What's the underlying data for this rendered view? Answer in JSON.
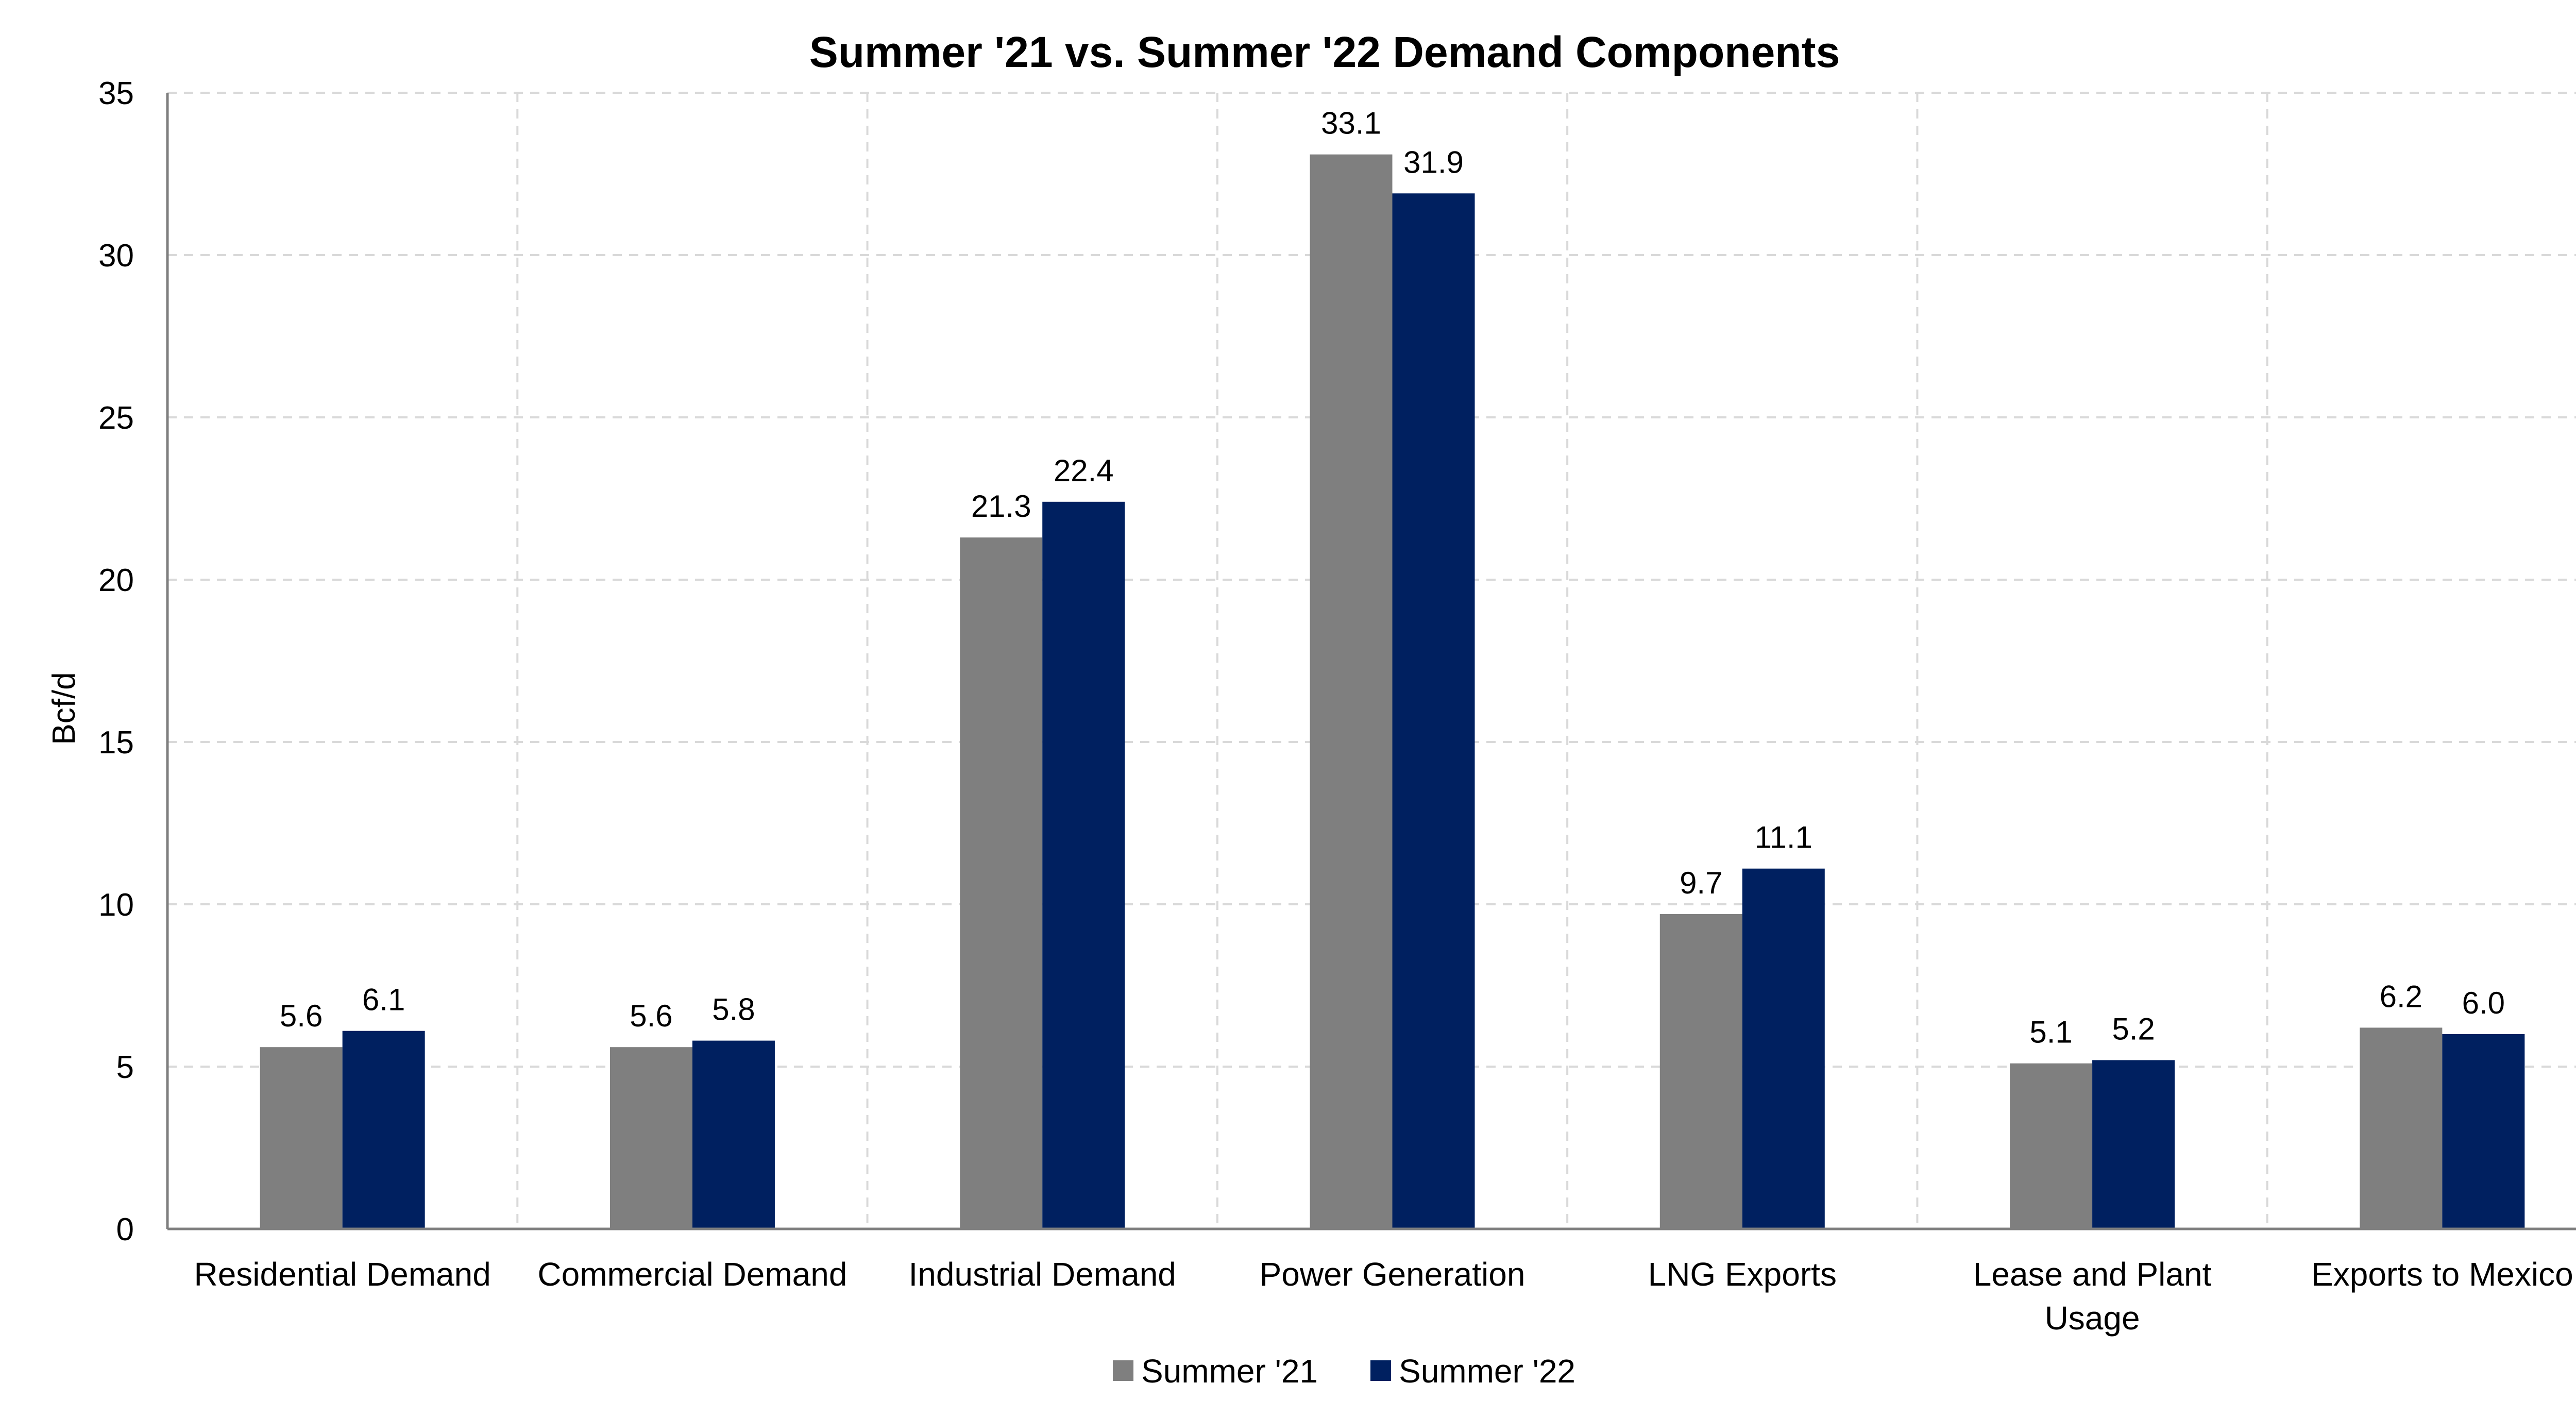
{
  "chart_data": {
    "type": "bar",
    "title": "Summer '21 vs. Summer '22 Demand Components",
    "xlabel": "",
    "ylabel": "Bcf/d",
    "ylim": [
      0,
      35
    ],
    "yticks": [
      0,
      5,
      10,
      15,
      20,
      25,
      30,
      35
    ],
    "grid": true,
    "legend_position": "bottom",
    "categories": [
      [
        "Residential Demand"
      ],
      [
        "Commercial Demand"
      ],
      [
        "Industrial Demand"
      ],
      [
        "Power Generation"
      ],
      [
        "LNG Exports"
      ],
      [
        "Lease and Plant",
        "Usage"
      ],
      [
        "Exports to Mexico"
      ]
    ],
    "series": [
      {
        "name": "Summer '21",
        "color": "#7f7f7f",
        "values": [
          5.6,
          5.6,
          21.3,
          33.1,
          9.7,
          5.1,
          6.2
        ],
        "labels": [
          "5.6",
          "5.6",
          "21.3",
          "33.1",
          "9.7",
          "5.1",
          "6.2"
        ]
      },
      {
        "name": "Summer '22",
        "color": "#002060",
        "values": [
          6.1,
          5.8,
          22.4,
          31.9,
          11.1,
          5.2,
          6.0
        ],
        "labels": [
          "6.1",
          "5.8",
          "22.4",
          "31.9",
          "11.1",
          "5.2",
          "6.0"
        ]
      }
    ]
  }
}
